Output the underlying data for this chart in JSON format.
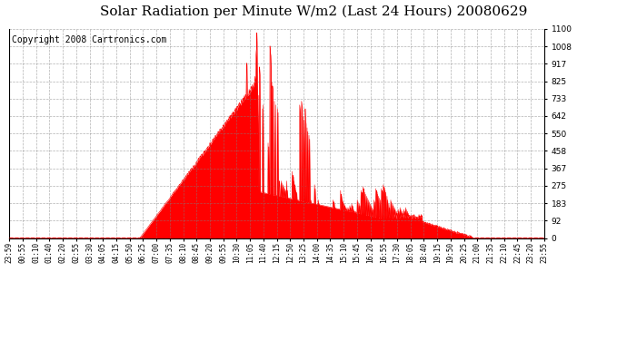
{
  "title": "Solar Radiation per Minute W/m2 (Last 24 Hours) 20080629",
  "copyright": "Copyright 2008 Cartronics.com",
  "y_min": 0.0,
  "y_max": 1100.0,
  "ytick_values": [
    0.0,
    91.7,
    183.3,
    275.0,
    366.7,
    458.3,
    550.0,
    641.7,
    733.3,
    825.0,
    916.7,
    1008.3,
    1100.0
  ],
  "x_labels": [
    "23:59",
    "00:55",
    "01:10",
    "01:40",
    "02:20",
    "02:55",
    "03:30",
    "04:05",
    "04:15",
    "05:50",
    "06:25",
    "07:00",
    "07:35",
    "08:10",
    "08:45",
    "09:20",
    "09:55",
    "10:30",
    "11:05",
    "11:40",
    "12:15",
    "12:50",
    "13:25",
    "14:00",
    "14:35",
    "15:10",
    "15:45",
    "16:20",
    "16:55",
    "17:30",
    "18:05",
    "18:40",
    "19:15",
    "19:50",
    "20:25",
    "21:00",
    "21:35",
    "22:10",
    "22:45",
    "23:20",
    "23:55"
  ],
  "fill_color": "#FF0000",
  "line_color": "#FF0000",
  "background_color": "#FFFFFF",
  "grid_color": "#808080",
  "dashed_line_color": "#FF0000",
  "title_fontsize": 11,
  "copyright_fontsize": 7
}
